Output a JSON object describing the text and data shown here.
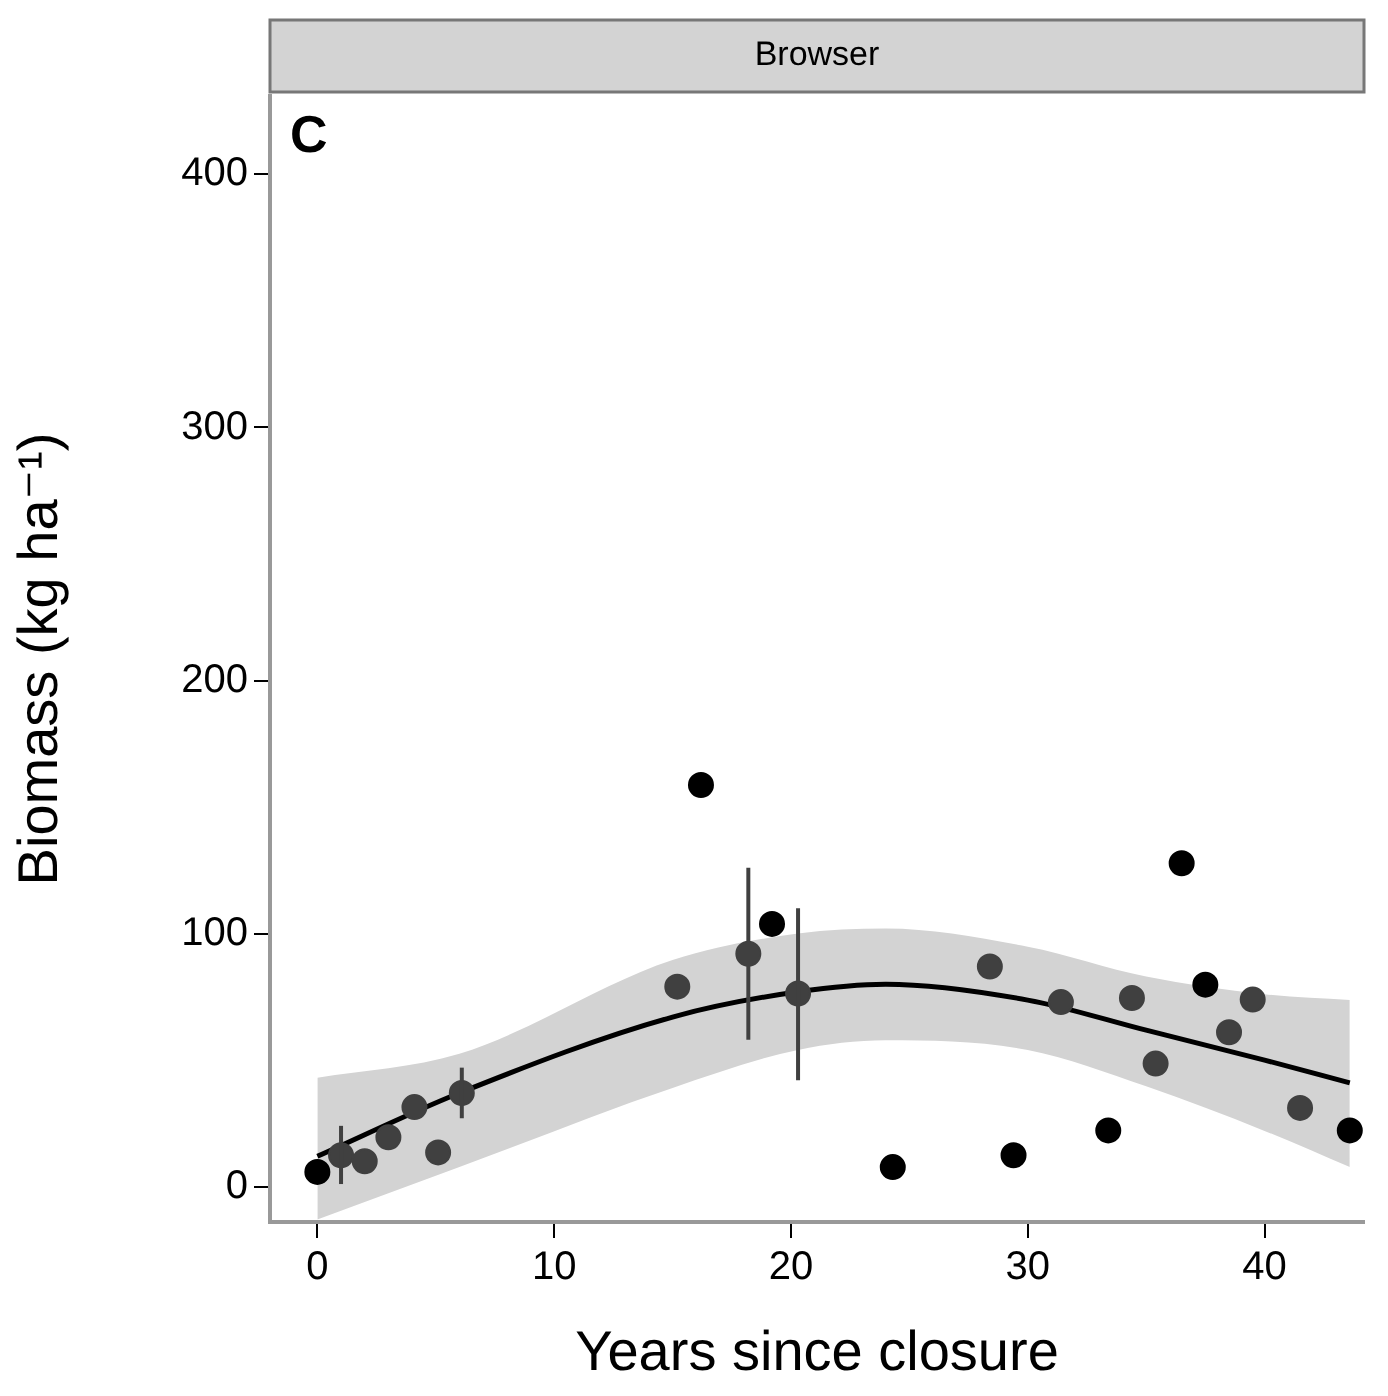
{
  "chart_data": {
    "type": "scatter",
    "title": "Browser",
    "xlabel": "Years since closure",
    "ylabel": "Biomass (kg ha⁻¹)",
    "annotations": [
      "C"
    ],
    "xlim": [
      -2,
      44.2
    ],
    "xticks": [
      0,
      10,
      20,
      30,
      40
    ],
    "ylim": [
      -14,
      431
    ],
    "yticks": [
      0,
      100,
      200,
      300,
      400
    ],
    "grid": false,
    "legend": false,
    "marker": "circle",
    "series": [
      {
        "type": "line",
        "marker": "none",
        "color": "#000000",
        "x": [
          0,
          6,
          15,
          20.3,
          24,
          30,
          35,
          40,
          43.6
        ],
        "values": [
          12,
          37,
          67,
          77,
          80,
          73.7,
          61.8,
          50,
          41
        ],
        "lower": [
          -13,
          7.7,
          39,
          54,
          57.8,
          54,
          39.6,
          22,
          7.7
        ],
        "upper": [
          43,
          52.5,
          89.5,
          100,
          102,
          94.8,
          83,
          76,
          73.7
        ]
      },
      {
        "color": "#000000",
        "x": [
          0,
          16.2,
          19.2,
          24.3,
          29.4,
          33.4,
          36.5,
          37.5,
          43.6
        ],
        "values": [
          5.8,
          158.7,
          103.8,
          7.7,
          12.4,
          22.2,
          127.8,
          79.8,
          22.2
        ]
      },
      {
        "color": "#404040",
        "x": [
          1.0,
          2.0,
          3.0,
          4.1,
          5.1,
          6.1,
          15.2,
          18.2,
          20.3,
          28.4,
          31.4,
          34.4,
          35.4,
          38.5,
          39.5,
          41.5
        ],
        "values": [
          12.4,
          10,
          19.5,
          31.4,
          13.5,
          37,
          79,
          92,
          76.3,
          87,
          72.9,
          74.5,
          48.6,
          61,
          73.9,
          31.1
        ],
        "errors": [
          [
            1,
            24
          ],
          null,
          null,
          null,
          null,
          [
            27,
            47
          ],
          null,
          [
            58,
            126
          ],
          [
            42,
            110
          ],
          null,
          null,
          null,
          null,
          null,
          null,
          null
        ]
      }
    ]
  }
}
